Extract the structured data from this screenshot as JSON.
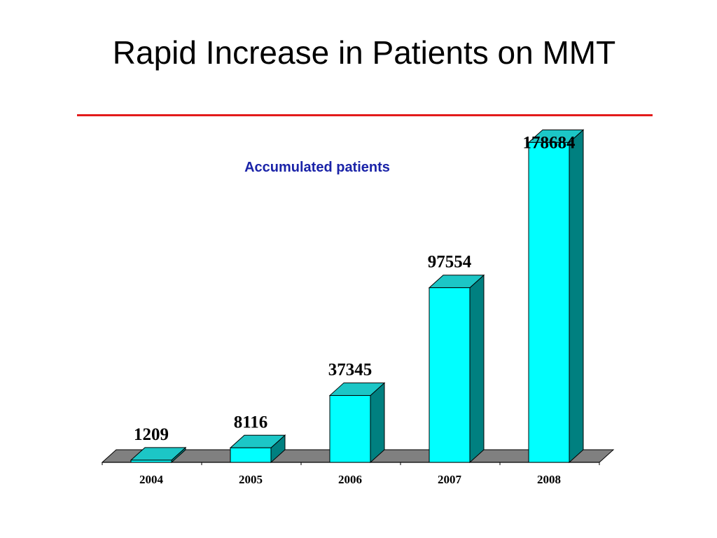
{
  "slide": {
    "title": "Rapid Increase in Patients on MMT"
  },
  "colors": {
    "title_rule": "#e31b1b",
    "bar_front": "#00ffff",
    "bar_top": "#1cc6c6",
    "bar_side": "#008080",
    "floor": "#808080",
    "chart_title": "#1a23a8"
  },
  "chart_data": {
    "type": "bar",
    "title": "Accumulated patients",
    "categories": [
      "2004",
      "2005",
      "2006",
      "2007",
      "2008"
    ],
    "values": [
      1209,
      8116,
      37345,
      97554,
      178684
    ],
    "data_labels": [
      "1209",
      "8116",
      "37345",
      "97554",
      "178684"
    ],
    "xlabel": "",
    "ylabel": "",
    "ylim": [
      0,
      180000
    ],
    "grid": false,
    "legend": "none",
    "style": "3d"
  }
}
